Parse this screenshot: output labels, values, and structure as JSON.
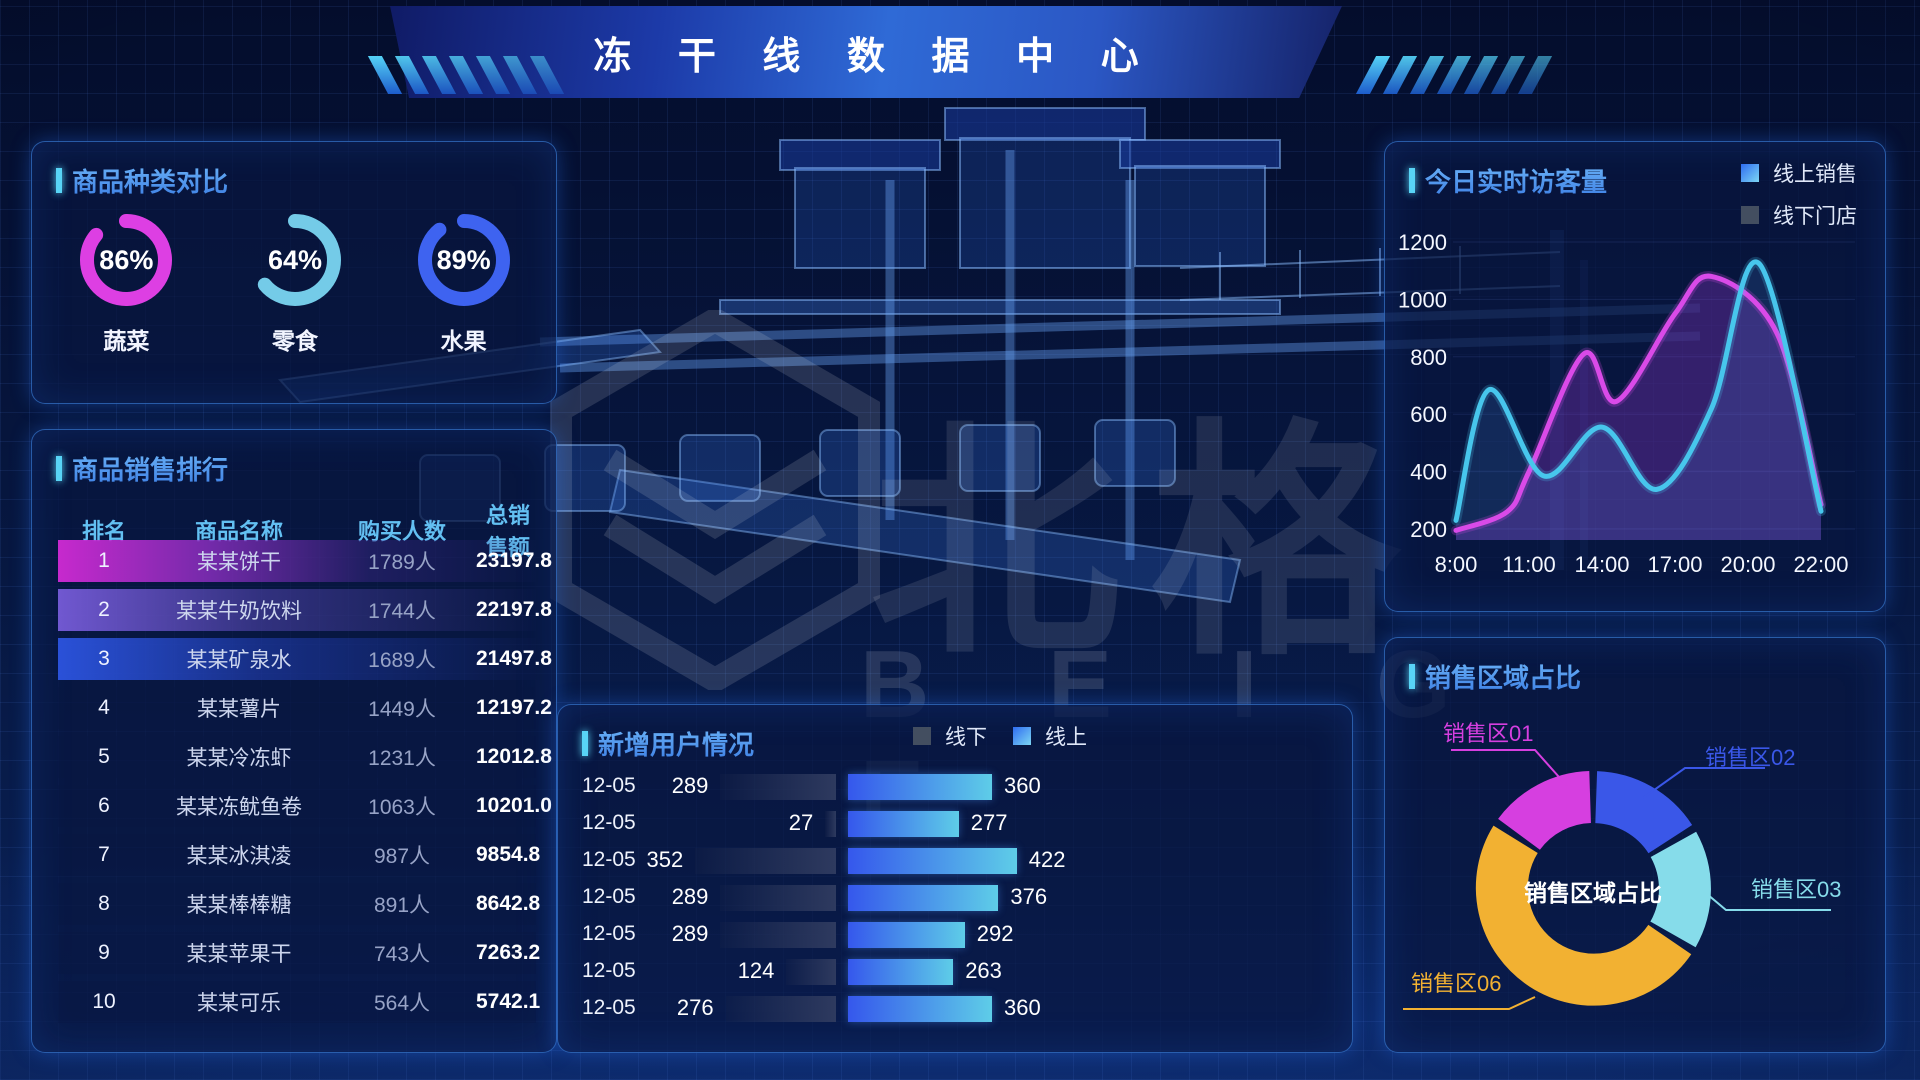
{
  "app": {
    "title": "冻 干 线 数 据 中 心"
  },
  "watermark": {
    "cjk": "北格",
    "latin": "B E I G E"
  },
  "panels": {
    "category": {
      "title": "商品种类对比"
    },
    "ranking": {
      "title": "商品销售排行"
    },
    "visitors": {
      "title": "今日实时访客量",
      "legend": [
        {
          "label": "线上销售"
        },
        {
          "label": "线下门店"
        }
      ]
    },
    "users": {
      "title": "新增用户情况",
      "legend": [
        {
          "label": "线下"
        },
        {
          "label": "线上"
        }
      ]
    },
    "region": {
      "title": "销售区域占比",
      "center_label": "销售区域占比"
    }
  },
  "chart_data": [
    {
      "id": "category_share",
      "type": "pie",
      "title": "商品种类对比",
      "unit": "%",
      "items": [
        {
          "label": "蔬菜",
          "value": 86,
          "color": "#dd3fe3"
        },
        {
          "label": "零食",
          "value": 64,
          "color": "#74cbe8"
        },
        {
          "label": "水果",
          "value": 89,
          "color": "#3e63f0"
        }
      ]
    },
    {
      "id": "sales_ranking",
      "type": "table",
      "title": "商品销售排行",
      "columns": [
        "排名",
        "商品名称",
        "购买人数",
        "总销售额"
      ],
      "rows": [
        [
          1,
          "某某饼干",
          "1789人",
          "23197.8"
        ],
        [
          2,
          "某某牛奶饮料",
          "1744人",
          "22197.8"
        ],
        [
          3,
          "某某矿泉水",
          "1689人",
          "21497.8"
        ],
        [
          4,
          "某某薯片",
          "1449人",
          "12197.2"
        ],
        [
          5,
          "某某冷冻虾",
          "1231人",
          "12012.8"
        ],
        [
          6,
          "某某冻鱿鱼卷",
          "1063人",
          "10201.0"
        ],
        [
          7,
          "某某冰淇凌",
          "987人",
          "9854.8"
        ],
        [
          8,
          "某某棒棒糖",
          "891人",
          "8642.8"
        ],
        [
          9,
          "某某苹果干",
          "743人",
          "7263.2"
        ],
        [
          10,
          "某某可乐",
          "564人",
          "5742.1"
        ]
      ]
    },
    {
      "id": "visitors_today",
      "type": "line",
      "title": "今日实时访客量",
      "legend": [
        "线上销售",
        "线下门店"
      ],
      "legend_swatches": [
        "#4a9bf0",
        "#434e60"
      ],
      "categories": [
        "8:00",
        "11:00",
        "14:00",
        "17:00",
        "20:00",
        "22:00"
      ],
      "ylim": [
        200,
        1200
      ],
      "yticks": [
        1200,
        1000,
        800,
        600,
        400,
        200
      ],
      "grid": true,
      "legend_position": "top-right",
      "series": [
        {
          "name": "线上销售",
          "color": "#47c6ec",
          "area": "rgba(80,150,230,0.16)",
          "points": [
            [
              0,
              230
            ],
            [
              0.45,
              685
            ],
            [
              1.2,
              385
            ],
            [
              2.0,
              555
            ],
            [
              2.75,
              338
            ],
            [
              3.5,
              620
            ],
            [
              4.15,
              1125
            ],
            [
              5,
              262
            ]
          ]
        },
        {
          "name": "线下门店",
          "color": "#d94ae8",
          "area": "rgba(170,60,230,0.28)",
          "points": [
            [
              0,
              195
            ],
            [
              0.7,
              260
            ],
            [
              1,
              400
            ],
            [
              1.75,
              810
            ],
            [
              2.2,
              645
            ],
            [
              3.0,
              950
            ],
            [
              3.5,
              1080
            ],
            [
              4.4,
              880
            ],
            [
              5,
              285
            ]
          ]
        }
      ]
    },
    {
      "id": "new_users",
      "type": "bar",
      "title": "新增用户情况",
      "orientation": "horizontal-tornado",
      "legend": [
        "线下",
        "线上"
      ],
      "categories": [
        "12-05",
        "12-05",
        "12-05",
        "12-05",
        "12-05",
        "12-05",
        "12-05"
      ],
      "series": [
        {
          "name": "线下",
          "color": "#2e3a5e",
          "values": [
            289,
            27,
            352,
            289,
            289,
            124,
            276
          ]
        },
        {
          "name": "线上",
          "color": "#3557ec",
          "color2": "#5ecde8",
          "values": [
            360,
            277,
            422,
            376,
            292,
            263,
            360
          ]
        }
      ]
    },
    {
      "id": "region_share",
      "type": "pie",
      "title": "销售区域占比",
      "center_label": "销售区域占比",
      "slices": [
        {
          "label": "销售区01",
          "value": 15,
          "color": "#d63fe0"
        },
        {
          "label": "销售区02",
          "value": 16,
          "color": "#3a57e8"
        },
        {
          "label": "销售区03",
          "value": 17,
          "color": "#86dcea"
        },
        {
          "label": "销售区06",
          "value": 52,
          "color": "#f2b132"
        }
      ]
    }
  ]
}
